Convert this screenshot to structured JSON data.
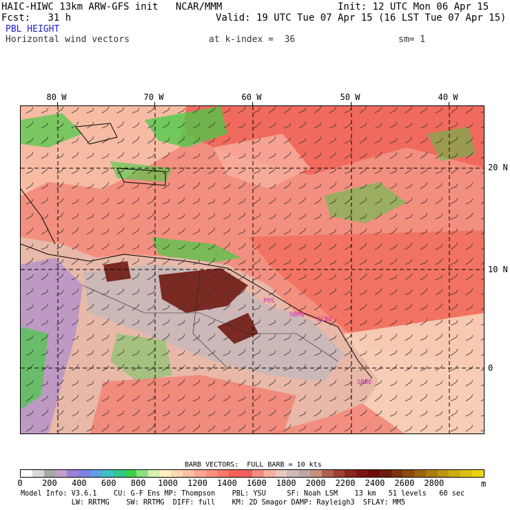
{
  "header": {
    "line1_left": "HAIC-HIWC 13km ARW-GFS init   NCAR/MMM",
    "line1_right": "Init: 12 UTC Mon 06 Apr 15",
    "line2_left": "Fcst:   31 h",
    "line2_right": "Valid: 19 UTC Tue 07 Apr 15 (16 LST Tue 07 Apr 15)",
    "field_name": "PBL HEIGHT",
    "vector_desc": "Horizontal wind vectors",
    "k_index": "at k-index =  36",
    "smoothing": "sm= 1"
  },
  "map": {
    "longitude_labels": [
      "80 W",
      "70 W",
      "60 W",
      "50 W",
      "40 W"
    ],
    "latitude_labels": [
      "20 N",
      "10 N",
      "0"
    ],
    "place_labels": [
      "POS",
      "SCBO",
      "SBMQ",
      "SBBE"
    ],
    "colors": {
      "land_high": "#7a2a22",
      "land_mid": "#c8b8b8",
      "ocean": "#f08070",
      "green": "#44cc44",
      "purple": "#9a80d8"
    }
  },
  "colorbar": {
    "title": "BARB VECTORS:  FULL BARB = 10 kts",
    "unit": "m",
    "labels": [
      "0",
      "200",
      "400",
      "600",
      "800",
      "1000",
      "1200",
      "1400",
      "1600",
      "1800",
      "2000",
      "2200",
      "2400",
      "2600",
      "2800"
    ],
    "colors": [
      "#ffffff",
      "#d8d8d8",
      "#a8a8a8",
      "#c0a0c8",
      "#9a80d8",
      "#8080e8",
      "#60a0e8",
      "#40c0c0",
      "#30c890",
      "#3cd04c",
      "#90e080",
      "#d8f0b0",
      "#fff0c0",
      "#ffd8b0",
      "#ffc0a0",
      "#ffa890",
      "#ff9080",
      "#ff7868",
      "#ff6058",
      "#f06060",
      "#f48c80",
      "#f4b0a0",
      "#e8c8c0",
      "#d0b8b8",
      "#c0a8a8",
      "#c89080",
      "#b06050",
      "#a04030",
      "#8c2420",
      "#7c1410",
      "#700c08",
      "#6c1c0c",
      "#7c3410",
      "#8c4c10",
      "#9c6410",
      "#ac7c10",
      "#bc9410",
      "#ccac10",
      "#dcc010",
      "#ecd410"
    ]
  },
  "footer": {
    "line1": "Model Info: V3.6.1    CU: G-F Ens MP: Thompson    PBL: YSU     SF: Noah LSM    13 km   51 levels   60 sec",
    "line2": "            LW: RRTMG    SW: RRTMG  DIFF: full    KM: 2D Smagor DAMP: Rayleigh3  SFLAY: MM5"
  }
}
